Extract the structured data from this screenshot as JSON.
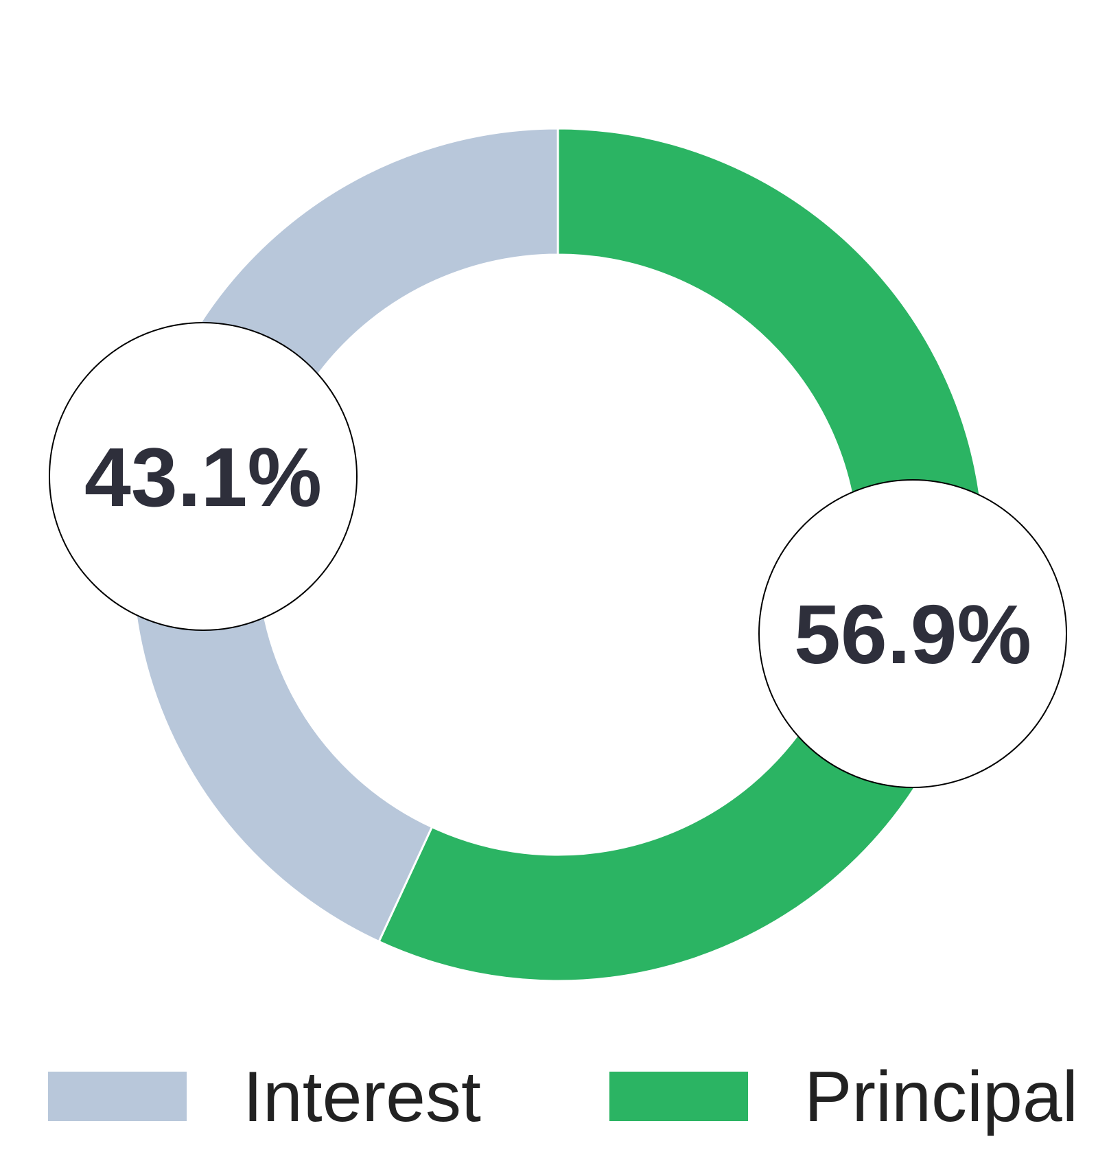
{
  "chart_data": {
    "type": "pie",
    "donut": true,
    "categories": [
      "Interest",
      "Principal"
    ],
    "values": [
      43.1,
      56.9
    ],
    "unit": "%",
    "data_labels": [
      "43.1%",
      "56.9%"
    ],
    "colors": [
      "#b8c7da",
      "#2bb463"
    ],
    "legend": {
      "position": "bottom",
      "entries": [
        "Interest",
        "Principal"
      ]
    },
    "label_text_color": "#2e2f3b"
  }
}
